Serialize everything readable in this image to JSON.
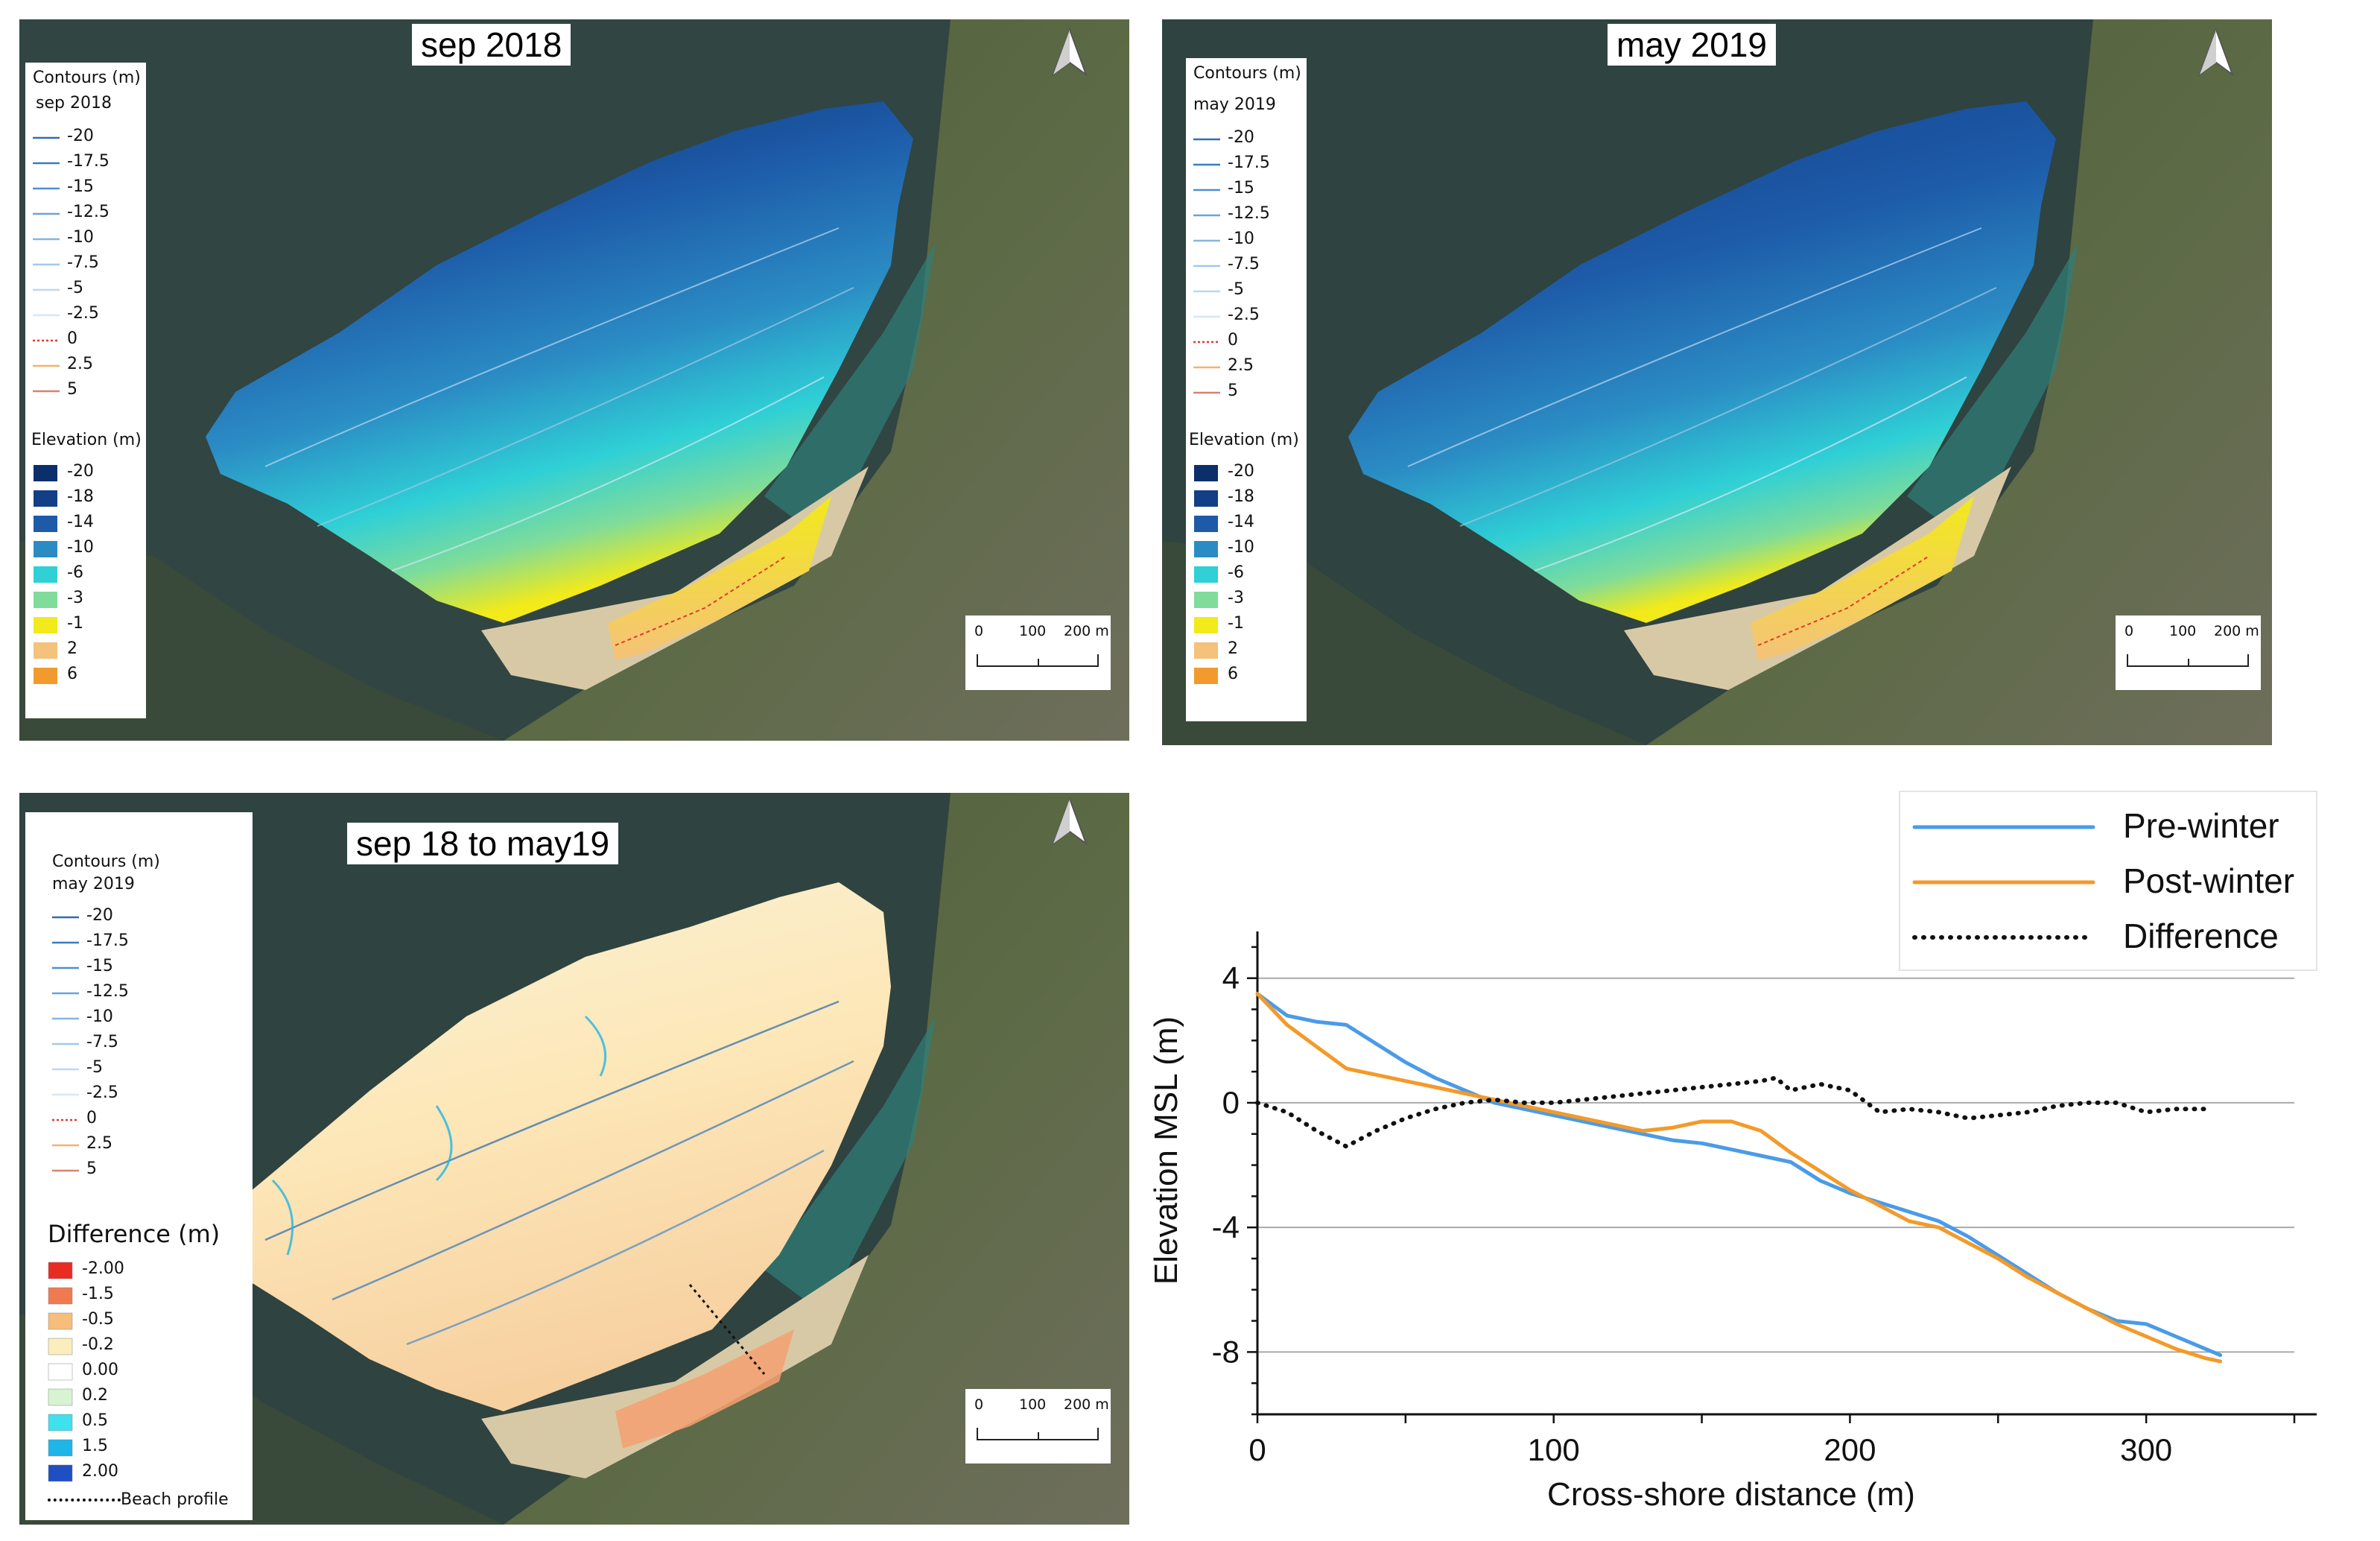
{
  "maps": {
    "sep2018": {
      "title": "sep 2018",
      "contour_title": "Contours (m)",
      "contour_subtitle": "sep 2018",
      "elevation_title": "Elevation (m)"
    },
    "may2019": {
      "title": "may 2019",
      "contour_title": "Contours (m)",
      "contour_subtitle": "may 2019",
      "elevation_title": "Elevation (m)"
    },
    "diff": {
      "title": "sep 18 to may19",
      "contour_title": "Contours (m)",
      "contour_subtitle": "may 2019",
      "difference_title": "Difference (m)",
      "beach_profile_label": "Beach profile"
    }
  },
  "contour_levels": [
    {
      "label": "-20",
      "color": "#2f6fb3"
    },
    {
      "label": "-17.5",
      "color": "#3b7dc0"
    },
    {
      "label": "-15",
      "color": "#4f8fcc"
    },
    {
      "label": "-12.5",
      "color": "#6aa4d6"
    },
    {
      "label": "-10",
      "color": "#86b6df"
    },
    {
      "label": "-7.5",
      "color": "#a3c8e8"
    },
    {
      "label": "-5",
      "color": "#bdd8ef"
    },
    {
      "label": "-2.5",
      "color": "#d6e7f5"
    },
    {
      "label": "0",
      "color": "#e03a2f",
      "dashed": true
    },
    {
      "label": "2.5",
      "color": "#f2b36a"
    },
    {
      "label": "5",
      "color": "#d9826b"
    }
  ],
  "elevation_classes": [
    {
      "label": "-20",
      "color": "#0b2f6b"
    },
    {
      "label": "-18",
      "color": "#123f86"
    },
    {
      "label": "-14",
      "color": "#1d5aa8"
    },
    {
      "label": "-10",
      "color": "#2b8cc4"
    },
    {
      "label": "-6",
      "color": "#2fd0d6"
    },
    {
      "label": "-3",
      "color": "#7fdc9a"
    },
    {
      "label": "-1",
      "color": "#f2ea1a"
    },
    {
      "label": "2",
      "color": "#f4c27a"
    },
    {
      "label": "6",
      "color": "#f29a2e"
    }
  ],
  "difference_classes": [
    {
      "label": "-2.00",
      "color": "#e82c22"
    },
    {
      "label": "-1.5",
      "color": "#f07a4f"
    },
    {
      "label": "-0.5",
      "color": "#f7bd7a"
    },
    {
      "label": "-0.2",
      "color": "#fbeebc"
    },
    {
      "label": "0.00",
      "color": "#ffffff"
    },
    {
      "label": "0.2",
      "color": "#d8f3d2"
    },
    {
      "label": "0.5",
      "color": "#3fe1ee"
    },
    {
      "label": "1.5",
      "color": "#1eb5e9"
    },
    {
      "label": "2.00",
      "color": "#1f4fc2"
    }
  ],
  "scalebar": {
    "labels": [
      "0",
      "100",
      "200 m"
    ]
  },
  "chart_data": {
    "type": "line",
    "xlabel": "Cross-shore distance (m)",
    "ylabel": "Elevation MSL (m)",
    "xlim": [
      0,
      350
    ],
    "ylim": [
      -10,
      5.5
    ],
    "xticks": [
      0,
      100,
      200,
      300
    ],
    "yticks": [
      4,
      0,
      -4,
      -8
    ],
    "grid": "horizontal",
    "legend_position": "top-right",
    "series": [
      {
        "name": "Pre-winter",
        "color": "#4a9be8",
        "style": "solid",
        "x": [
          0,
          10,
          20,
          30,
          40,
          50,
          60,
          70,
          80,
          90,
          100,
          110,
          120,
          130,
          140,
          150,
          160,
          170,
          180,
          190,
          200,
          210,
          220,
          230,
          240,
          250,
          260,
          270,
          280,
          290,
          300,
          310,
          320,
          325
        ],
        "y": [
          3.5,
          2.8,
          2.6,
          2.5,
          1.9,
          1.3,
          0.8,
          0.4,
          0.0,
          -0.2,
          -0.4,
          -0.6,
          -0.8,
          -1.0,
          -1.2,
          -1.3,
          -1.5,
          -1.7,
          -1.9,
          -2.5,
          -2.9,
          -3.2,
          -3.5,
          -3.8,
          -4.3,
          -4.9,
          -5.5,
          -6.1,
          -6.6,
          -7.0,
          -7.1,
          -7.5,
          -7.9,
          -8.1
        ]
      },
      {
        "name": "Post-winter",
        "color": "#f39a2a",
        "style": "solid",
        "x": [
          0,
          10,
          20,
          30,
          40,
          50,
          60,
          70,
          80,
          90,
          100,
          110,
          120,
          130,
          140,
          150,
          160,
          170,
          180,
          190,
          200,
          210,
          220,
          230,
          240,
          250,
          260,
          270,
          280,
          290,
          300,
          310,
          320,
          325
        ],
        "y": [
          3.5,
          2.5,
          1.8,
          1.1,
          0.9,
          0.7,
          0.5,
          0.3,
          0.1,
          -0.1,
          -0.3,
          -0.5,
          -0.7,
          -0.9,
          -0.8,
          -0.6,
          -0.6,
          -0.9,
          -1.6,
          -2.2,
          -2.8,
          -3.3,
          -3.8,
          -4.0,
          -4.5,
          -5.0,
          -5.6,
          -6.1,
          -6.6,
          -7.1,
          -7.5,
          -7.9,
          -8.2,
          -8.3
        ]
      },
      {
        "name": "Difference",
        "color": "#111111",
        "style": "dotted",
        "x": [
          0,
          10,
          20,
          30,
          40,
          50,
          60,
          70,
          80,
          90,
          100,
          110,
          120,
          130,
          140,
          150,
          160,
          170,
          175,
          180,
          190,
          200,
          210,
          220,
          230,
          240,
          250,
          260,
          270,
          280,
          290,
          300,
          310,
          320
        ],
        "y": [
          0.0,
          -0.3,
          -0.9,
          -1.4,
          -0.9,
          -0.5,
          -0.2,
          0.0,
          0.1,
          0.0,
          0.0,
          0.1,
          0.2,
          0.3,
          0.4,
          0.5,
          0.6,
          0.7,
          0.8,
          0.4,
          0.6,
          0.4,
          -0.3,
          -0.2,
          -0.3,
          -0.5,
          -0.4,
          -0.3,
          -0.1,
          0.0,
          0.0,
          -0.3,
          -0.2,
          -0.2
        ]
      }
    ]
  }
}
